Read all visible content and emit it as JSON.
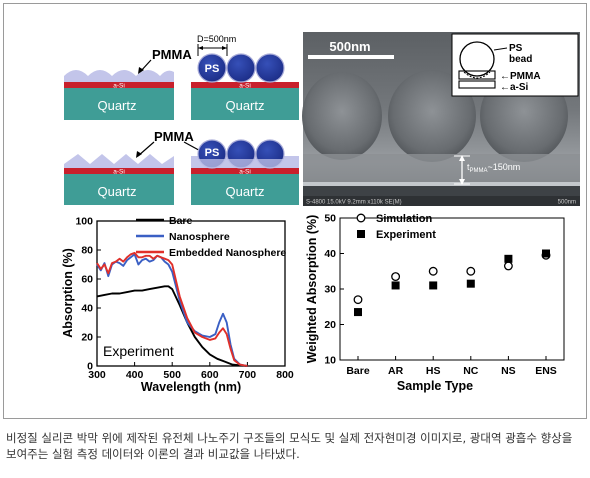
{
  "schematic": {
    "pmma_label_top": "PMMA",
    "pmma_label_bottom": "PMMA",
    "diameter_label": "D=500nm",
    "ps_label": "PS",
    "asi_label": "a-Si",
    "quartz_label": "Quartz"
  },
  "sem": {
    "scale_label": "500nm",
    "inset_ps": "PS",
    "inset_bead": "bead",
    "inset_pmma": "PMMA",
    "inset_asi": "a-Si",
    "thickness_label": "t",
    "thickness_sub": "PMMA",
    "thickness_value": "~150nm",
    "footer_left": "S-4800 15.0kV 9.2mm x110k SE(M)",
    "footer_right": "500nm"
  },
  "chart_data": [
    {
      "type": "line",
      "xlabel": "Wavelength (nm)",
      "ylabel": "Absorption (%)",
      "xlim": [
        300,
        800
      ],
      "ylim": [
        0,
        100
      ],
      "xticks": [
        300,
        400,
        500,
        600,
        700,
        800
      ],
      "yticks": [
        0,
        20,
        40,
        60,
        80,
        100
      ],
      "annotation": "Experiment",
      "legend_position": "top",
      "series": [
        {
          "name": "Bare",
          "color": "#000000",
          "x": [
            300,
            320,
            340,
            360,
            380,
            400,
            420,
            440,
            460,
            480,
            490,
            500,
            520,
            540,
            560,
            580,
            600,
            620,
            640,
            660,
            680,
            700
          ],
          "y": [
            48,
            49,
            50,
            50,
            51,
            52,
            52,
            53,
            54,
            55,
            55,
            53,
            42,
            30,
            20,
            13,
            8,
            5,
            3,
            1,
            0.5,
            0
          ]
        },
        {
          "name": "Nanosphere",
          "color": "#3a5fc4",
          "x": [
            300,
            310,
            320,
            330,
            340,
            350,
            360,
            370,
            380,
            390,
            400,
            410,
            420,
            430,
            440,
            450,
            460,
            470,
            480,
            490,
            500,
            520,
            540,
            560,
            580,
            600,
            615,
            625,
            635,
            645,
            655,
            665,
            680,
            700
          ],
          "y": [
            70,
            66,
            71,
            62,
            70,
            72,
            71,
            69,
            73,
            75,
            77,
            70,
            73,
            74,
            72,
            73,
            76,
            75,
            72,
            70,
            65,
            45,
            30,
            24,
            21,
            20,
            22,
            30,
            36,
            30,
            15,
            5,
            1,
            0
          ]
        },
        {
          "name": "Embedded Nanosphere",
          "color": "#e0302a",
          "x": [
            300,
            310,
            320,
            330,
            340,
            350,
            360,
            370,
            380,
            390,
            400,
            410,
            420,
            430,
            440,
            450,
            460,
            470,
            480,
            490,
            500,
            520,
            540,
            560,
            580,
            600,
            615,
            625,
            635,
            645,
            655,
            665,
            680,
            700
          ],
          "y": [
            71,
            67,
            70,
            64,
            71,
            72,
            74,
            72,
            75,
            77,
            78,
            75,
            75,
            76,
            76,
            74,
            76,
            75,
            74,
            73,
            70,
            48,
            33,
            23,
            20,
            18,
            19,
            23,
            26,
            22,
            12,
            4,
            1,
            0
          ]
        }
      ]
    },
    {
      "type": "scatter",
      "xlabel": "Sample Type",
      "ylabel": "Weighted Absorption (%)",
      "ylim": [
        10,
        50
      ],
      "yticks": [
        10,
        20,
        30,
        40,
        50
      ],
      "categories": [
        "Bare",
        "AR",
        "HS",
        "NC",
        "NS",
        "ENS"
      ],
      "legend_position": "top",
      "series": [
        {
          "name": "Simulation",
          "marker": "open-circle",
          "values": [
            27,
            33.5,
            35,
            35,
            36.5,
            39.5
          ]
        },
        {
          "name": "Experiment",
          "marker": "filled-square",
          "values": [
            23.5,
            31,
            31,
            31.5,
            38.5,
            40
          ]
        }
      ]
    }
  ],
  "caption": "비정질 실리콘 박막 위에 제작된 유전체 나노주기 구조들의 모식도 및 실제 전자현미경 이미지로, 광대역 광흡수 향상을 보여주는 실험 측정 데이터와 이론의 결과 비교값을 나타냈다.",
  "colors": {
    "quartz": "#3f9d96",
    "asi": "#c8202c",
    "pmma": "#c3c5ea",
    "sphere": "#243a9a"
  }
}
